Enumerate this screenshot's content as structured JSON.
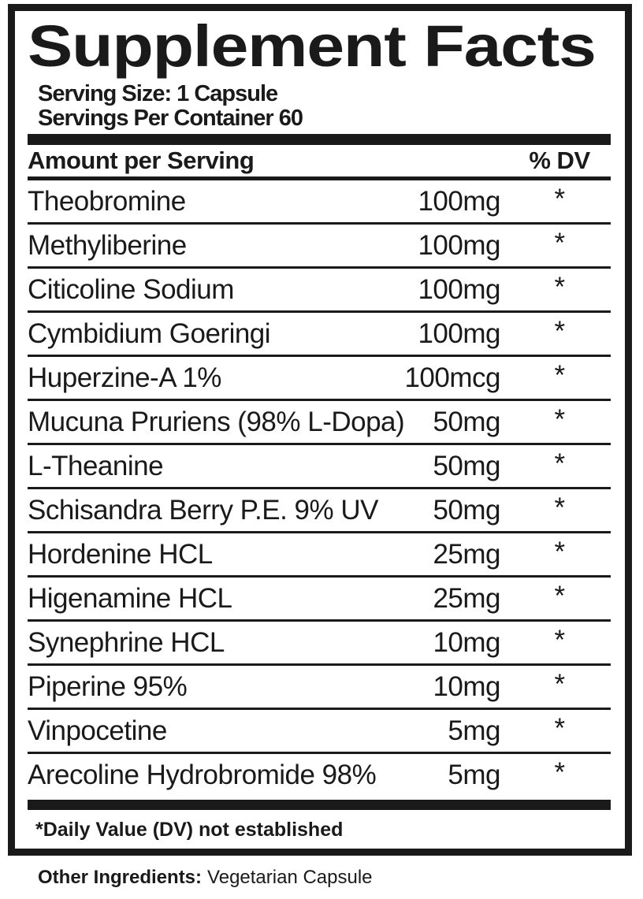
{
  "title": "Supplement Facts",
  "serving": {
    "size": "Serving Size: 1 Capsule",
    "per_container": "Servings Per Container 60"
  },
  "table": {
    "header": {
      "amount_label": "Amount per Serving",
      "dv_label": "% DV"
    },
    "rows": [
      {
        "name": "Theobromine",
        "amount": "100mg",
        "dv": "*"
      },
      {
        "name": "Methyliberine",
        "amount": "100mg",
        "dv": "*"
      },
      {
        "name": "Citicoline Sodium",
        "amount": "100mg",
        "dv": "*"
      },
      {
        "name": "Cymbidium Goeringi",
        "amount": "100mg",
        "dv": "*"
      },
      {
        "name": "Huperzine-A 1%",
        "amount": "100mcg",
        "dv": "*"
      },
      {
        "name": "Mucuna Pruriens (98% L-Dopa)",
        "amount": "50mg",
        "dv": "*"
      },
      {
        "name": "L-Theanine",
        "amount": "50mg",
        "dv": "*"
      },
      {
        "name": "Schisandra Berry P.E. 9% UV",
        "amount": "50mg",
        "dv": "*"
      },
      {
        "name": "Hordenine HCL",
        "amount": "25mg",
        "dv": "*"
      },
      {
        "name": "Higenamine HCL",
        "amount": "25mg",
        "dv": "*"
      },
      {
        "name": "Synephrine HCL",
        "amount": "10mg",
        "dv": "*"
      },
      {
        "name": "Piperine 95%",
        "amount": "10mg",
        "dv": "*"
      },
      {
        "name": "Vinpocetine",
        "amount": "5mg",
        "dv": "*"
      },
      {
        "name": "Arecoline Hydrobromide 98%",
        "amount": "5mg",
        "dv": "*"
      }
    ]
  },
  "footnote": "*Daily Value (DV) not established",
  "other_ingredients": {
    "label": "Other Ingredients:",
    "value": "Vegetarian Capsule"
  },
  "colors": {
    "ink": "#1a1a1a",
    "background": "#ffffff"
  }
}
